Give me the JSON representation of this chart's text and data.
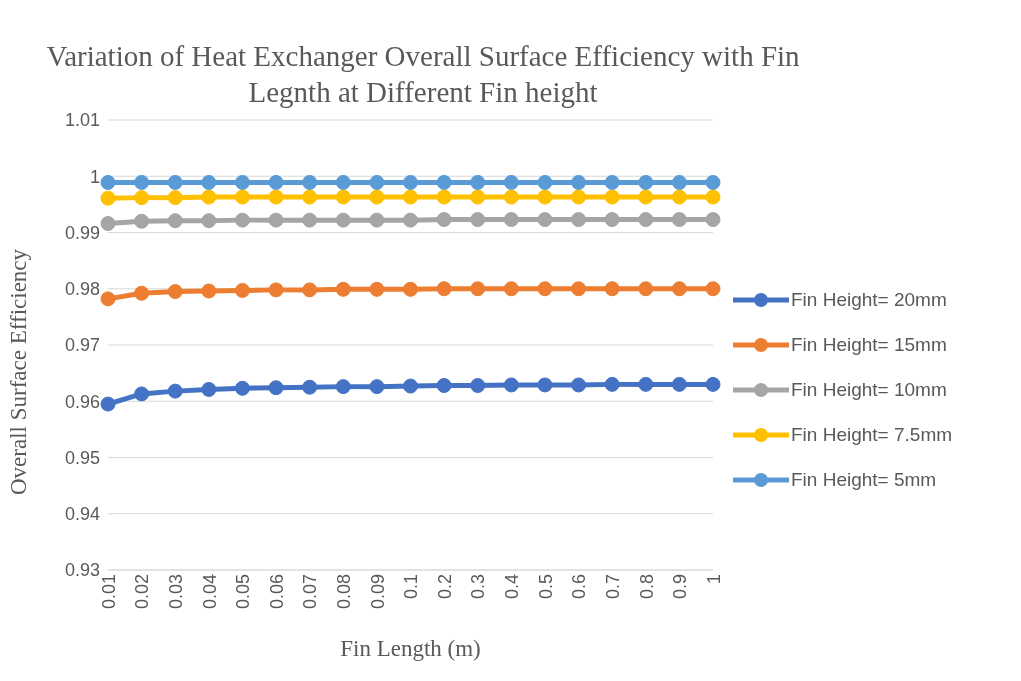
{
  "chart_data": {
    "type": "line",
    "title": "Variation of Heat Exchanger Overall Surface Efficiency with Fin Legnth at Different Fin height",
    "xlabel": "Fin Length (m)",
    "ylabel": "Overall Surface Efficiency",
    "categories": [
      "0.01",
      "0.02",
      "0.03",
      "0.04",
      "0.05",
      "0.06",
      "0.07",
      "0.08",
      "0.09",
      "0.1",
      "0.2",
      "0.3",
      "0.4",
      "0.5",
      "0.6",
      "0.7",
      "0.8",
      "0.9",
      "1"
    ],
    "series": [
      {
        "name": "Fin Height= 20mm",
        "color": "#4472c4",
        "values": [
          0.9595,
          0.9613,
          0.9618,
          0.9621,
          0.9623,
          0.9624,
          0.9625,
          0.9626,
          0.9626,
          0.9627,
          0.9628,
          0.9628,
          0.9629,
          0.9629,
          0.9629,
          0.963,
          0.963,
          0.963,
          0.963
        ]
      },
      {
        "name": "Fin Height= 15mm",
        "color": "#ed7d31",
        "values": [
          0.9782,
          0.9792,
          0.9795,
          0.9796,
          0.9797,
          0.9798,
          0.9798,
          0.9799,
          0.9799,
          0.9799,
          0.98,
          0.98,
          0.98,
          0.98,
          0.98,
          0.98,
          0.98,
          0.98,
          0.98
        ]
      },
      {
        "name": "Fin Height= 10mm",
        "color": "#a5a5a5",
        "values": [
          0.9916,
          0.992,
          0.9921,
          0.9921,
          0.9922,
          0.9922,
          0.9922,
          0.9922,
          0.9922,
          0.9922,
          0.9923,
          0.9923,
          0.9923,
          0.9923,
          0.9923,
          0.9923,
          0.9923,
          0.9923,
          0.9923
        ]
      },
      {
        "name": "Fin Height= 7.5mm",
        "color": "#ffc000",
        "values": [
          0.9961,
          0.9962,
          0.9962,
          0.9963,
          0.9963,
          0.9963,
          0.9963,
          0.9963,
          0.9963,
          0.9963,
          0.9963,
          0.9963,
          0.9963,
          0.9963,
          0.9963,
          0.9963,
          0.9963,
          0.9963,
          0.9963
        ]
      },
      {
        "name": "Fin Height= 5mm",
        "color": "#5b9bd5",
        "values": [
          0.9989,
          0.9989,
          0.9989,
          0.9989,
          0.9989,
          0.9989,
          0.9989,
          0.9989,
          0.9989,
          0.9989,
          0.9989,
          0.9989,
          0.9989,
          0.9989,
          0.9989,
          0.9989,
          0.9989,
          0.9989,
          0.9989
        ]
      }
    ],
    "ylim": [
      0.93,
      1.01
    ],
    "yticks": [
      0.93,
      0.94,
      0.95,
      0.96,
      0.97,
      0.98,
      0.99,
      1,
      1.01
    ],
    "grid": "y",
    "legend": "right",
    "marker": "circle",
    "line_style": "solid"
  }
}
